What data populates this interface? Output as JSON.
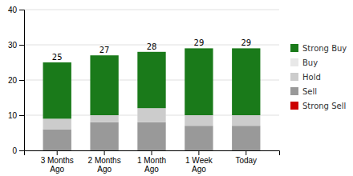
{
  "chart_data": {
    "type": "bar",
    "stacked": true,
    "categories": [
      "3 Months\nAgo",
      "2 Months\nAgo",
      "1 Month\nAgo",
      "1 Week\nAgo",
      "Today"
    ],
    "series": [
      {
        "name": "Strong Sell",
        "color": "#cc0000",
        "values": [
          0,
          0,
          0,
          0,
          0
        ]
      },
      {
        "name": "Sell",
        "color": "#999999",
        "values": [
          6,
          8,
          8,
          7,
          7
        ]
      },
      {
        "name": "Hold",
        "color": "#cccccc",
        "values": [
          3,
          2,
          4,
          3,
          3
        ]
      },
      {
        "name": "Buy",
        "color": "#e8e8e8",
        "values": [
          0,
          0,
          0,
          0,
          0
        ]
      },
      {
        "name": "Strong Buy",
        "color": "#1a7a1a",
        "values": [
          16,
          17,
          16,
          19,
          19
        ]
      }
    ],
    "totals": [
      25,
      27,
      28,
      29,
      29
    ],
    "ylim": [
      0,
      40
    ],
    "yticks": [
      0,
      10,
      20,
      30,
      40
    ],
    "grid": true
  }
}
